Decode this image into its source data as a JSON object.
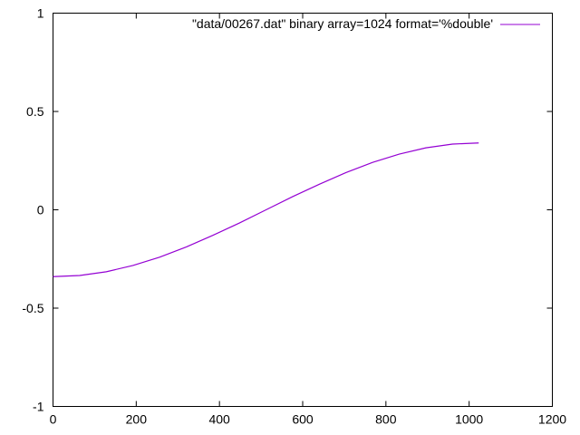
{
  "chart_data": {
    "type": "line",
    "title": "",
    "xlabel": "",
    "ylabel": "",
    "xlim": [
      0,
      1200
    ],
    "ylim": [
      -1,
      1
    ],
    "x_ticks": [
      0,
      200,
      400,
      600,
      800,
      1000,
      1200
    ],
    "y_ticks": [
      -1,
      -0.5,
      0,
      0.5,
      1
    ],
    "x_tick_labels": [
      "0",
      "200",
      "400",
      "600",
      "800",
      "1000",
      "1200"
    ],
    "y_tick_labels": [
      "-1",
      "-0.5",
      "0",
      "0.5",
      "1"
    ],
    "grid": false,
    "legend_position": "top-right",
    "series": [
      {
        "name": "\"data/00267.dat\" binary array=1024 format='%double'",
        "color": "#9400d3",
        "x": [
          0,
          64,
          128,
          192,
          256,
          320,
          384,
          448,
          512,
          576,
          640,
          704,
          768,
          832,
          896,
          960,
          1023
        ],
        "y": [
          -0.34,
          -0.334,
          -0.315,
          -0.283,
          -0.241,
          -0.189,
          -0.13,
          -0.067,
          0.0,
          0.067,
          0.13,
          0.189,
          0.241,
          0.283,
          0.315,
          0.334,
          0.34
        ]
      }
    ]
  }
}
